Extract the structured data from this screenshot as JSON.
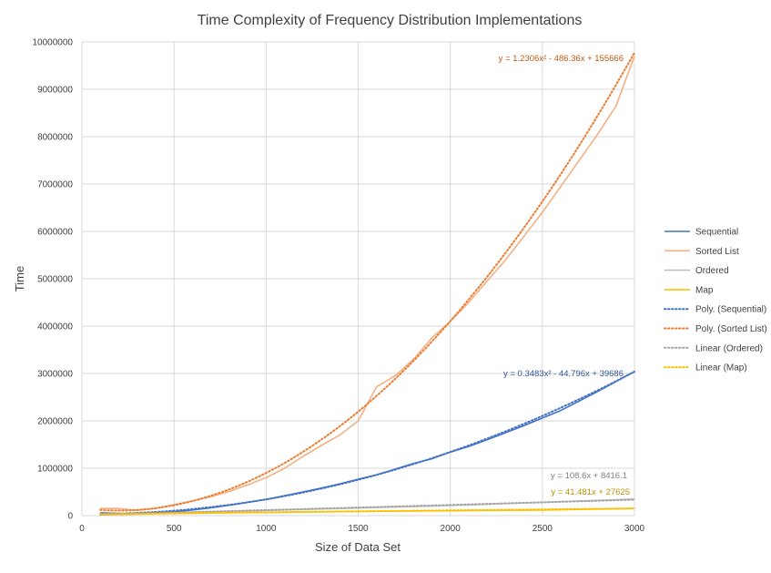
{
  "chart_data": {
    "type": "line",
    "title": "Time Complexity of Frequency Distribution Implementations",
    "xlabel": "Size of Data Set",
    "ylabel": "Time",
    "xlim": [
      0,
      3000
    ],
    "ylim": [
      0,
      10000000
    ],
    "x_ticks": [
      "0",
      "500",
      "1000",
      "1500",
      "2000",
      "2500",
      "3000"
    ],
    "y_ticks": [
      "0",
      "1000000",
      "2000000",
      "3000000",
      "4000000",
      "5000000",
      "6000000",
      "7000000",
      "8000000",
      "9000000",
      "10000000"
    ],
    "grid": true,
    "legend_position": "right",
    "series": [
      {
        "name": "Sequential",
        "kind": "solid",
        "color": "#4472C4",
        "points": [
          [
            100,
            60000
          ],
          [
            200,
            45000
          ],
          [
            300,
            40000
          ],
          [
            400,
            60000
          ],
          [
            500,
            80000
          ],
          [
            600,
            120000
          ],
          [
            700,
            165000
          ],
          [
            800,
            220000
          ],
          [
            900,
            280000
          ],
          [
            1000,
            340000
          ],
          [
            1100,
            420000
          ],
          [
            1200,
            500000
          ],
          [
            1300,
            580000
          ],
          [
            1400,
            670000
          ],
          [
            1500,
            770000
          ],
          [
            1600,
            860000
          ],
          [
            1700,
            980000
          ],
          [
            1800,
            1100000
          ],
          [
            1900,
            1200000
          ],
          [
            2000,
            1340000
          ],
          [
            2100,
            1460000
          ],
          [
            2200,
            1600000
          ],
          [
            2300,
            1750000
          ],
          [
            2400,
            1900000
          ],
          [
            2500,
            2060000
          ],
          [
            2600,
            2220000
          ],
          [
            2700,
            2420000
          ],
          [
            2800,
            2620000
          ],
          [
            2900,
            2830000
          ],
          [
            3000,
            3040000
          ]
        ]
      },
      {
        "name": "Sorted List",
        "kind": "solid",
        "color": "#F4B183",
        "points": [
          [
            100,
            150000
          ],
          [
            200,
            150000
          ],
          [
            300,
            110000
          ],
          [
            400,
            150000
          ],
          [
            500,
            230000
          ],
          [
            600,
            310000
          ],
          [
            700,
            400000
          ],
          [
            800,
            510000
          ],
          [
            900,
            650000
          ],
          [
            1000,
            800000
          ],
          [
            1100,
            1000000
          ],
          [
            1200,
            1250000
          ],
          [
            1300,
            1480000
          ],
          [
            1400,
            1700000
          ],
          [
            1500,
            2000000
          ],
          [
            1600,
            2720000
          ],
          [
            1700,
            2950000
          ],
          [
            1800,
            3300000
          ],
          [
            1900,
            3750000
          ],
          [
            2000,
            4100000
          ],
          [
            2100,
            4500000
          ],
          [
            2200,
            4950000
          ],
          [
            2300,
            5400000
          ],
          [
            2400,
            5900000
          ],
          [
            2500,
            6400000
          ],
          [
            2600,
            6950000
          ],
          [
            2700,
            7500000
          ],
          [
            2800,
            8050000
          ],
          [
            2900,
            8650000
          ],
          [
            3000,
            9700000
          ]
        ]
      },
      {
        "name": "Ordered",
        "kind": "solid",
        "color": "#BFBFBF",
        "points": [
          [
            100,
            25000
          ],
          [
            300,
            30000
          ],
          [
            500,
            60000
          ],
          [
            700,
            80000
          ],
          [
            900,
            100000
          ],
          [
            1100,
            120000
          ],
          [
            1300,
            140000
          ],
          [
            1500,
            160000
          ],
          [
            1700,
            180000
          ],
          [
            1900,
            200000
          ],
          [
            2100,
            225000
          ],
          [
            2300,
            255000
          ],
          [
            2500,
            280000
          ],
          [
            2700,
            310000
          ],
          [
            3000,
            350000
          ]
        ]
      },
      {
        "name": "Map",
        "kind": "solid",
        "color": "#FFC000",
        "points": [
          [
            100,
            20000
          ],
          [
            300,
            35000
          ],
          [
            500,
            45000
          ],
          [
            700,
            55000
          ],
          [
            900,
            65000
          ],
          [
            1100,
            72000
          ],
          [
            1300,
            80000
          ],
          [
            1500,
            88000
          ],
          [
            1700,
            95000
          ],
          [
            1900,
            100000
          ],
          [
            2100,
            105000
          ],
          [
            2300,
            112000
          ],
          [
            2500,
            118000
          ],
          [
            2700,
            130000
          ],
          [
            3000,
            150000
          ]
        ]
      },
      {
        "name": "Poly. (Sequential)",
        "kind": "trend-poly",
        "color": "#4472C4",
        "coef": [
          0.3483,
          -44.796,
          39686
        ],
        "equation": "y = 0.3483x² - 44.796x + 39686"
      },
      {
        "name": "Poly. (Sorted List)",
        "kind": "trend-poly",
        "color": "#ED7D31",
        "coef": [
          1.2306,
          -486.36,
          155666
        ],
        "equation": "y = 1.2306x² - 486.36x + 155666"
      },
      {
        "name": "Linear (Ordered)",
        "kind": "trend-linear",
        "color": "#A5A5A5",
        "coef": [
          108.6,
          8416.1
        ],
        "equation": "y = 108.6x + 8416.1"
      },
      {
        "name": "Linear (Map)",
        "kind": "trend-linear",
        "color": "#FFC000",
        "coef": [
          41.481,
          27625
        ],
        "equation": "y = 41.481x + 27625"
      }
    ],
    "equation_label_colors": [
      "#2F5597",
      "#C55A11",
      "#7F7F7F",
      "#BF9000"
    ]
  }
}
